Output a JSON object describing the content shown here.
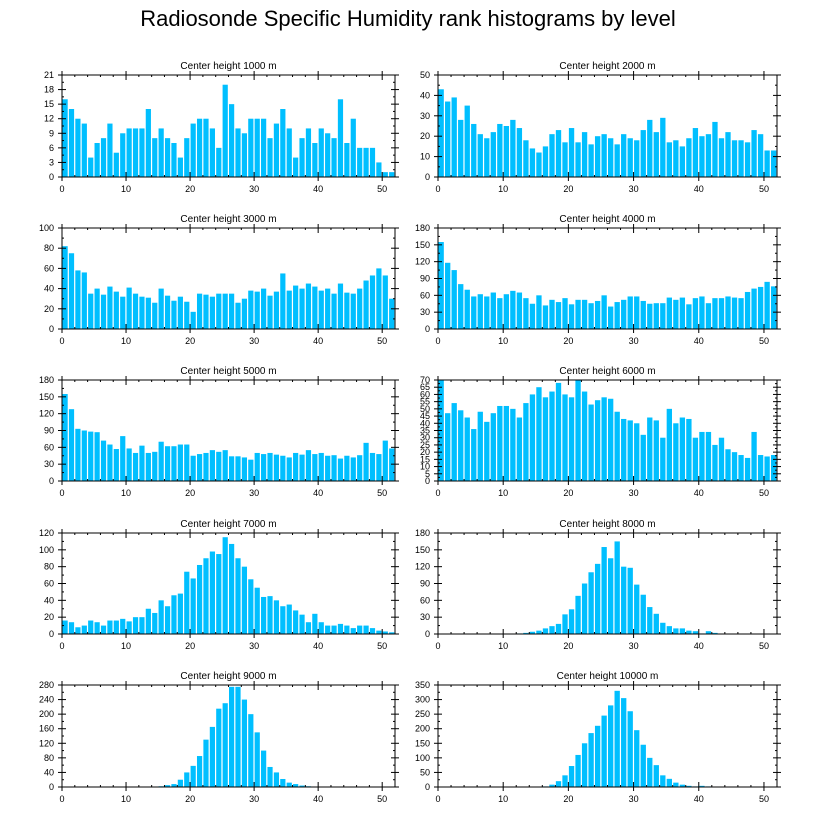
{
  "title": "Radiosonde Specific Humidity rank histograms by level",
  "bar_color": "#00bfff",
  "chart_data": [
    {
      "type": "bar",
      "title": "Center height 1000 m",
      "x": [
        0,
        1,
        2,
        3,
        4,
        5,
        6,
        7,
        8,
        9,
        10,
        11,
        12,
        13,
        14,
        15,
        16,
        17,
        18,
        19,
        20,
        21,
        22,
        23,
        24,
        25,
        26,
        27,
        28,
        29,
        30,
        31,
        32,
        33,
        34,
        35,
        36,
        37,
        38,
        39,
        40,
        41,
        42,
        43,
        44,
        45,
        46,
        47,
        48,
        49,
        50,
        51
      ],
      "values": [
        16,
        14,
        12,
        11,
        4,
        7,
        8,
        11,
        5,
        9,
        10,
        10,
        10,
        14,
        8,
        10,
        8,
        7,
        4,
        8,
        11,
        12,
        12,
        10,
        6,
        19,
        15,
        10,
        9,
        12,
        12,
        12,
        8,
        11,
        14,
        10,
        4,
        8,
        10,
        7,
        10,
        9,
        8,
        16,
        7,
        12,
        6,
        6,
        6,
        3,
        1,
        1
      ],
      "xlim": [
        0,
        52
      ],
      "ylim": [
        0,
        21
      ],
      "yticks": [
        0,
        3,
        6,
        9,
        12,
        15,
        18,
        21
      ],
      "xticks": [
        0,
        10,
        20,
        30,
        40,
        50
      ]
    },
    {
      "type": "bar",
      "title": "Center height 2000 m",
      "x": [
        0,
        1,
        2,
        3,
        4,
        5,
        6,
        7,
        8,
        9,
        10,
        11,
        12,
        13,
        14,
        15,
        16,
        17,
        18,
        19,
        20,
        21,
        22,
        23,
        24,
        25,
        26,
        27,
        28,
        29,
        30,
        31,
        32,
        33,
        34,
        35,
        36,
        37,
        38,
        39,
        40,
        41,
        42,
        43,
        44,
        45,
        46,
        47,
        48,
        49,
        50,
        51
      ],
      "values": [
        43,
        37,
        39,
        28,
        35,
        26,
        21,
        19,
        22,
        26,
        25,
        28,
        24,
        18,
        14,
        12,
        15,
        21,
        23,
        17,
        24,
        17,
        22,
        16,
        20,
        21,
        19,
        16,
        21,
        19,
        18,
        23,
        28,
        22,
        29,
        17,
        18,
        15,
        19,
        24,
        20,
        21,
        27,
        19,
        22,
        18,
        18,
        17,
        23,
        21,
        13,
        13
      ],
      "xlim": [
        0,
        52
      ],
      "ylim": [
        0,
        50
      ],
      "yticks": [
        0,
        10,
        20,
        30,
        40,
        50
      ],
      "xticks": [
        0,
        10,
        20,
        30,
        40,
        50
      ]
    },
    {
      "type": "bar",
      "title": "Center height 3000 m",
      "x": [
        0,
        1,
        2,
        3,
        4,
        5,
        6,
        7,
        8,
        9,
        10,
        11,
        12,
        13,
        14,
        15,
        16,
        17,
        18,
        19,
        20,
        21,
        22,
        23,
        24,
        25,
        26,
        27,
        28,
        29,
        30,
        31,
        32,
        33,
        34,
        35,
        36,
        37,
        38,
        39,
        40,
        41,
        42,
        43,
        44,
        45,
        46,
        47,
        48,
        49,
        50,
        51
      ],
      "values": [
        82,
        75,
        58,
        56,
        35,
        40,
        34,
        42,
        37,
        32,
        41,
        35,
        32,
        31,
        26,
        40,
        33,
        28,
        32,
        27,
        17,
        35,
        34,
        32,
        35,
        35,
        35,
        26,
        30,
        38,
        37,
        40,
        33,
        37,
        55,
        38,
        43,
        40,
        45,
        42,
        38,
        40,
        35,
        45,
        36,
        35,
        40,
        48,
        53,
        60,
        53,
        30
      ],
      "xlim": [
        0,
        52
      ],
      "ylim": [
        0,
        100
      ],
      "yticks": [
        0,
        20,
        40,
        60,
        80,
        100
      ],
      "xticks": [
        0,
        10,
        20,
        30,
        40,
        50
      ]
    },
    {
      "type": "bar",
      "title": "Center height 4000 m",
      "x": [
        0,
        1,
        2,
        3,
        4,
        5,
        6,
        7,
        8,
        9,
        10,
        11,
        12,
        13,
        14,
        15,
        16,
        17,
        18,
        19,
        20,
        21,
        22,
        23,
        24,
        25,
        26,
        27,
        28,
        29,
        30,
        31,
        32,
        33,
        34,
        35,
        36,
        37,
        38,
        39,
        40,
        41,
        42,
        43,
        44,
        45,
        46,
        47,
        48,
        49,
        50,
        51
      ],
      "values": [
        155,
        118,
        105,
        80,
        70,
        58,
        62,
        58,
        65,
        55,
        62,
        68,
        65,
        55,
        45,
        60,
        42,
        52,
        48,
        55,
        44,
        52,
        52,
        46,
        50,
        60,
        40,
        48,
        52,
        58,
        58,
        50,
        45,
        46,
        46,
        56,
        52,
        56,
        44,
        55,
        58,
        46,
        55,
        55,
        58,
        56,
        55,
        66,
        72,
        75,
        84,
        76
      ],
      "xlim": [
        0,
        52
      ],
      "ylim": [
        0,
        180
      ],
      "yticks": [
        0,
        30,
        60,
        90,
        120,
        150,
        180
      ],
      "xticks": [
        0,
        10,
        20,
        30,
        40,
        50
      ]
    },
    {
      "type": "bar",
      "title": "Center height 5000 m",
      "x": [
        0,
        1,
        2,
        3,
        4,
        5,
        6,
        7,
        8,
        9,
        10,
        11,
        12,
        13,
        14,
        15,
        16,
        17,
        18,
        19,
        20,
        21,
        22,
        23,
        24,
        25,
        26,
        27,
        28,
        29,
        30,
        31,
        32,
        33,
        34,
        35,
        36,
        37,
        38,
        39,
        40,
        41,
        42,
        43,
        44,
        45,
        46,
        47,
        48,
        49,
        50,
        51
      ],
      "values": [
        155,
        128,
        93,
        90,
        88,
        87,
        72,
        65,
        57,
        80,
        58,
        50,
        63,
        50,
        52,
        70,
        62,
        62,
        65,
        65,
        45,
        48,
        50,
        55,
        52,
        55,
        44,
        44,
        42,
        38,
        50,
        48,
        50,
        47,
        45,
        42,
        50,
        47,
        55,
        48,
        50,
        45,
        46,
        40,
        45,
        42,
        46,
        68,
        50,
        48,
        72,
        58
      ],
      "xlim": [
        0,
        52
      ],
      "ylim": [
        0,
        180
      ],
      "yticks": [
        0,
        30,
        60,
        90,
        120,
        150,
        180
      ],
      "xticks": [
        0,
        10,
        20,
        30,
        40,
        50
      ]
    },
    {
      "type": "bar",
      "title": "Center height 6000 m",
      "x": [
        0,
        1,
        2,
        3,
        4,
        5,
        6,
        7,
        8,
        9,
        10,
        11,
        12,
        13,
        14,
        15,
        16,
        17,
        18,
        19,
        20,
        21,
        22,
        23,
        24,
        25,
        26,
        27,
        28,
        29,
        30,
        31,
        32,
        33,
        34,
        35,
        36,
        37,
        38,
        39,
        40,
        41,
        42,
        43,
        44,
        45,
        46,
        47,
        48,
        49,
        50,
        51
      ],
      "values": [
        70,
        47,
        54,
        49,
        44,
        36,
        48,
        41,
        47,
        52,
        52,
        50,
        44,
        54,
        60,
        65,
        58,
        62,
        68,
        60,
        58,
        70,
        62,
        53,
        56,
        58,
        57,
        48,
        43,
        42,
        40,
        32,
        44,
        42,
        30,
        50,
        40,
        44,
        43,
        30,
        34,
        34,
        25,
        30,
        22,
        20,
        18,
        16,
        34,
        18,
        17,
        18
      ],
      "xlim": [
        0,
        52
      ],
      "ylim": [
        0,
        70
      ],
      "yticks": [
        0,
        5,
        10,
        15,
        20,
        25,
        30,
        35,
        40,
        45,
        50,
        55,
        60,
        65,
        70
      ],
      "xticks": [
        0,
        10,
        20,
        30,
        40,
        50
      ]
    },
    {
      "type": "bar",
      "title": "Center height 7000 m",
      "x": [
        0,
        1,
        2,
        3,
        4,
        5,
        6,
        7,
        8,
        9,
        10,
        11,
        12,
        13,
        14,
        15,
        16,
        17,
        18,
        19,
        20,
        21,
        22,
        23,
        24,
        25,
        26,
        27,
        28,
        29,
        30,
        31,
        32,
        33,
        34,
        35,
        36,
        37,
        38,
        39,
        40,
        41,
        42,
        43,
        44,
        45,
        46,
        47,
        48,
        49,
        50,
        51
      ],
      "values": [
        16,
        14,
        8,
        10,
        16,
        14,
        10,
        16,
        16,
        18,
        15,
        20,
        20,
        30,
        25,
        40,
        33,
        46,
        48,
        74,
        66,
        82,
        90,
        98,
        95,
        115,
        107,
        90,
        80,
        65,
        55,
        44,
        45,
        40,
        33,
        35,
        28,
        23,
        14,
        24,
        14,
        10,
        10,
        12,
        10,
        7,
        10,
        10,
        7,
        4,
        3,
        2
      ],
      "xlim": [
        0,
        52
      ],
      "ylim": [
        0,
        120
      ],
      "yticks": [
        0,
        20,
        40,
        60,
        80,
        100,
        120
      ],
      "xticks": [
        0,
        10,
        20,
        30,
        40,
        50
      ]
    },
    {
      "type": "bar",
      "title": "Center height 8000 m",
      "x": [
        0,
        1,
        2,
        3,
        4,
        5,
        6,
        7,
        8,
        9,
        10,
        11,
        12,
        13,
        14,
        15,
        16,
        17,
        18,
        19,
        20,
        21,
        22,
        23,
        24,
        25,
        26,
        27,
        28,
        29,
        30,
        31,
        32,
        33,
        34,
        35,
        36,
        37,
        38,
        39,
        40,
        41,
        42,
        43,
        44,
        45,
        46,
        47,
        48,
        49,
        50,
        51
      ],
      "values": [
        0,
        0,
        0,
        0,
        0,
        0,
        0,
        0,
        0,
        0,
        0,
        0,
        1,
        2,
        4,
        6,
        10,
        14,
        18,
        35,
        44,
        68,
        90,
        110,
        125,
        155,
        135,
        165,
        120,
        118,
        88,
        70,
        48,
        36,
        20,
        14,
        10,
        10,
        6,
        5,
        1,
        5,
        2,
        0,
        0,
        0,
        0,
        0,
        0,
        0,
        0,
        0
      ],
      "xlim": [
        0,
        52
      ],
      "ylim": [
        0,
        180
      ],
      "yticks": [
        0,
        30,
        60,
        90,
        120,
        150,
        180
      ],
      "xticks": [
        0,
        10,
        20,
        30,
        40,
        50
      ]
    },
    {
      "type": "bar",
      "title": "Center height 9000 m",
      "x": [
        0,
        1,
        2,
        3,
        4,
        5,
        6,
        7,
        8,
        9,
        10,
        11,
        12,
        13,
        14,
        15,
        16,
        17,
        18,
        19,
        20,
        21,
        22,
        23,
        24,
        25,
        26,
        27,
        28,
        29,
        30,
        31,
        32,
        33,
        34,
        35,
        36,
        37,
        38,
        39,
        40,
        41,
        42,
        43,
        44,
        45,
        46,
        47,
        48,
        49,
        50,
        51
      ],
      "values": [
        0,
        0,
        0,
        0,
        0,
        0,
        0,
        0,
        0,
        0,
        0,
        0,
        0,
        0,
        0,
        2,
        5,
        8,
        20,
        40,
        58,
        85,
        130,
        165,
        215,
        230,
        275,
        275,
        240,
        200,
        150,
        100,
        55,
        40,
        22,
        12,
        8,
        4,
        2,
        0,
        0,
        0,
        0,
        0,
        0,
        0,
        0,
        0,
        0,
        0,
        0,
        0
      ],
      "xlim": [
        0,
        52
      ],
      "ylim": [
        0,
        280
      ],
      "yticks": [
        0,
        40,
        80,
        120,
        160,
        200,
        240,
        280
      ],
      "xticks": [
        0,
        10,
        20,
        30,
        40,
        50
      ]
    },
    {
      "type": "bar",
      "title": "Center height 10000 m",
      "x": [
        0,
        1,
        2,
        3,
        4,
        5,
        6,
        7,
        8,
        9,
        10,
        11,
        12,
        13,
        14,
        15,
        16,
        17,
        18,
        19,
        20,
        21,
        22,
        23,
        24,
        25,
        26,
        27,
        28,
        29,
        30,
        31,
        32,
        33,
        34,
        35,
        36,
        37,
        38,
        39,
        40,
        41,
        42,
        43,
        44,
        45,
        46,
        47,
        48,
        49,
        50,
        51
      ],
      "values": [
        0,
        0,
        0,
        0,
        0,
        0,
        0,
        0,
        0,
        0,
        0,
        0,
        0,
        0,
        0,
        0,
        2,
        8,
        20,
        40,
        72,
        110,
        150,
        185,
        210,
        245,
        280,
        330,
        305,
        260,
        195,
        145,
        100,
        75,
        40,
        28,
        15,
        8,
        4,
        2,
        4,
        2,
        0,
        0,
        0,
        0,
        0,
        0,
        0,
        0,
        0,
        0
      ],
      "xlim": [
        0,
        52
      ],
      "ylim": [
        0,
        350
      ],
      "yticks": [
        0,
        50,
        100,
        150,
        200,
        250,
        300,
        350
      ],
      "xticks": [
        0,
        10,
        20,
        30,
        40,
        50
      ]
    }
  ]
}
